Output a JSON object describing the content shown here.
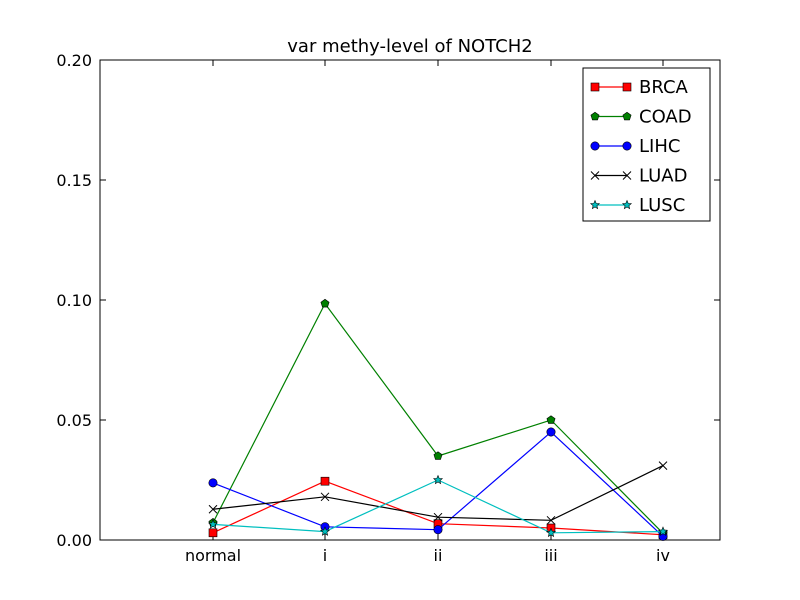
{
  "chart_data": {
    "type": "line",
    "title": "var methy-level of NOTCH2",
    "xlabel": "",
    "ylabel": "",
    "categories": [
      "normal",
      "i",
      "ii",
      "iii",
      "iv"
    ],
    "ylim": [
      0,
      0.2
    ],
    "yticks": [
      "0.00",
      "0.05",
      "0.10",
      "0.15",
      "0.20"
    ],
    "grid": false,
    "legend_position": "top-right",
    "series": [
      {
        "name": "BRCA",
        "color": "#ff0000",
        "marker": "square",
        "values": [
          0.003,
          0.0245,
          0.0068,
          0.005,
          0.0022
        ]
      },
      {
        "name": "COAD",
        "color": "#008000",
        "marker": "pentagon",
        "values": [
          0.0072,
          0.0985,
          0.035,
          0.05,
          0.0028
        ]
      },
      {
        "name": "LIHC",
        "color": "#0000ff",
        "marker": "circle",
        "values": [
          0.0238,
          0.0055,
          0.0043,
          0.045,
          0.0015
        ]
      },
      {
        "name": "LUAD",
        "color": "#000000",
        "marker": "x",
        "values": [
          0.0128,
          0.018,
          0.0095,
          0.0082,
          0.031
        ]
      },
      {
        "name": "LUSC",
        "color": "#00bfbf",
        "marker": "star",
        "values": [
          0.0065,
          0.0035,
          0.025,
          0.003,
          0.0035
        ]
      }
    ]
  }
}
